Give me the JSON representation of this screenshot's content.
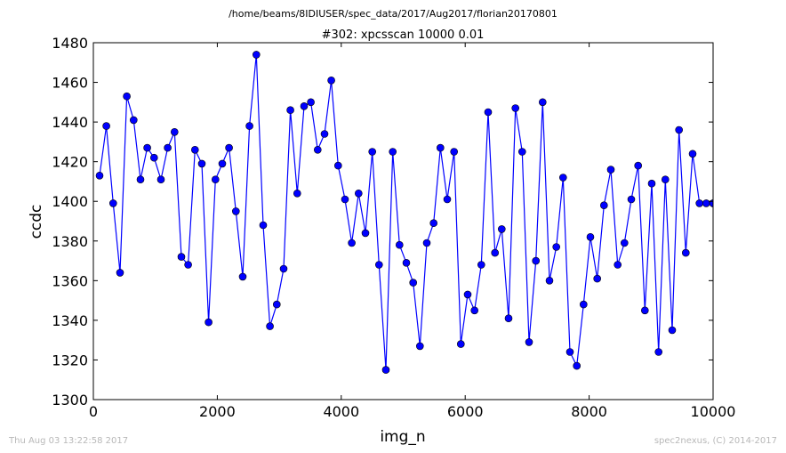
{
  "footer": {
    "timestamp": "Thu Aug 03 13:22:58 2017",
    "credit": "spec2nexus, (C) 2014-2017"
  },
  "chart_data": {
    "type": "line",
    "suptitle": "/home/beams/8IDIUSER/spec_data/2017/Aug2017/florian20170801",
    "title": "#302: xpcsscan 10000 0.01",
    "xlabel": "img_n",
    "ylabel": "ccdc",
    "xlim": [
      0,
      10000
    ],
    "ylim": [
      1300,
      1480
    ],
    "xticks": [
      0,
      2000,
      4000,
      6000,
      8000,
      10000
    ],
    "yticks": [
      1300,
      1320,
      1340,
      1360,
      1380,
      1400,
      1420,
      1440,
      1460,
      1480
    ],
    "grid": false,
    "line_color": "#0000ff",
    "marker": "circle",
    "series": [
      {
        "x": [
          100,
          210,
          320,
          430,
          540,
          650,
          760,
          870,
          980,
          1090,
          1200,
          1310,
          1420,
          1530,
          1640,
          1750,
          1860,
          1970,
          2080,
          2190,
          2300,
          2410,
          2520,
          2630,
          2740,
          2850,
          2960,
          3070,
          3180,
          3290,
          3400,
          3510,
          3620,
          3730,
          3840,
          3950,
          4060,
          4170,
          4280,
          4390,
          4500,
          4610,
          4720,
          4830,
          4940,
          5050,
          5160,
          5270,
          5380,
          5490,
          5600,
          5710,
          5820,
          5930,
          6040,
          6150,
          6260,
          6370,
          6480,
          6590,
          6700,
          6810,
          6920,
          7030,
          7140,
          7250,
          7360,
          7470,
          7580,
          7690,
          7800,
          7910,
          8020,
          8130,
          8240,
          8350,
          8460,
          8570,
          8680,
          8790,
          8900,
          9010,
          9120,
          9230,
          9340,
          9450,
          9560,
          9670,
          9780,
          9890,
          10000,
          10000
        ],
        "y": [
          1413,
          1438,
          1399,
          1364,
          1453,
          1441,
          1411,
          1427,
          1422,
          1411,
          1427,
          1435,
          1372,
          1368,
          1426,
          1419,
          1339,
          1411,
          1419,
          1427,
          1395,
          1362,
          1438,
          1474,
          1388,
          1337,
          1348,
          1366,
          1446,
          1404,
          1448,
          1450,
          1426,
          1434,
          1461,
          1418,
          1401,
          1379,
          1404,
          1384,
          1425,
          1368,
          1315,
          1425,
          1378,
          1369,
          1359,
          1327,
          1379,
          1389,
          1427,
          1401,
          1425,
          1328,
          1353,
          1345,
          1368,
          1445,
          1374,
          1386,
          1341,
          1447,
          1425,
          1329,
          1370,
          1450,
          1360,
          1377,
          1412,
          1324,
          1317,
          1348,
          1382,
          1361,
          1398,
          1416,
          1368,
          1379,
          1401,
          1418,
          1345,
          1409,
          1324,
          1411,
          1335,
          1436,
          1374,
          1424,
          1399,
          1399,
          1399,
          1399
        ]
      }
    ]
  }
}
